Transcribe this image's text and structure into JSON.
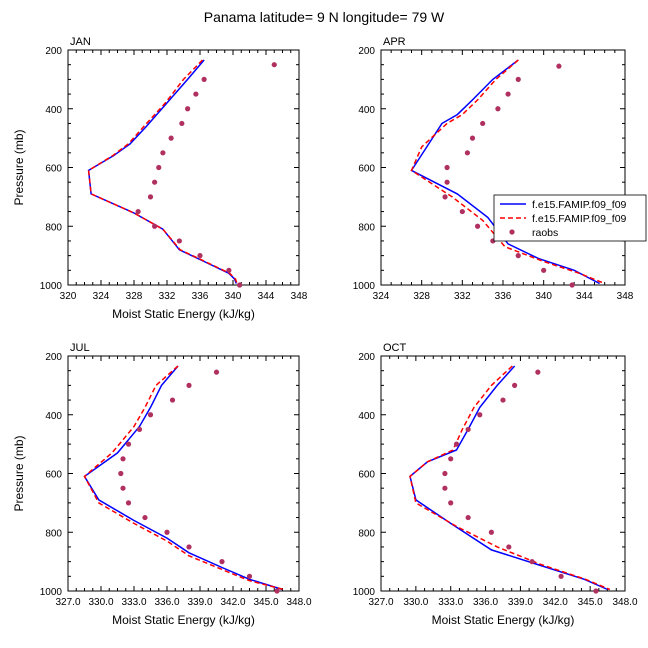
{
  "figure": {
    "title": "Panama  latitude= 9 N longitude= 79 W"
  },
  "chart_data": [
    {
      "type": "line",
      "panel_title": "JAN",
      "xlabel": "Moist Static Energy (kJ/kg)",
      "ylabel": "Pressure (mb)",
      "xlim": [
        320,
        348
      ],
      "ylim": [
        200,
        1000
      ],
      "y_reversed": true,
      "xticks": [
        320,
        324,
        328,
        332,
        336,
        340,
        344,
        348
      ],
      "xtick_labels": [
        "320",
        "324",
        "328",
        "332",
        "336",
        "340",
        "344",
        "348"
      ],
      "yticks": [
        200,
        400,
        600,
        800,
        1000
      ],
      "ytick_labels": [
        "200",
        "400",
        "600",
        "800",
        "1000"
      ],
      "series": [
        {
          "name": "f.e15.FAMIP.f09_f09",
          "style": "solid",
          "color": "#0000ff",
          "points": [
            [
              336.5,
              234
            ],
            [
              334.5,
              300
            ],
            [
              332.0,
              380
            ],
            [
              329.5,
              460
            ],
            [
              327.5,
              520
            ],
            [
              325.5,
              560
            ],
            [
              322.5,
              610
            ],
            [
              322.8,
              690
            ],
            [
              328.0,
              755
            ],
            [
              331.5,
              810
            ],
            [
              333.5,
              880
            ],
            [
              336.5,
              920
            ],
            [
              339.5,
              960
            ],
            [
              340.2,
              980
            ],
            [
              340.4,
              995
            ]
          ]
        },
        {
          "name": "f.e15.FAMIP.f09_f09",
          "style": "dashed",
          "color": "#ff0000",
          "points": [
            [
              336.3,
              234
            ],
            [
              334.0,
              300
            ],
            [
              331.8,
              380
            ],
            [
              329.2,
              460
            ],
            [
              327.3,
              520
            ],
            [
              325.4,
              560
            ],
            [
              322.5,
              610
            ],
            [
              322.8,
              690
            ],
            [
              328.0,
              755
            ],
            [
              331.5,
              810
            ],
            [
              333.6,
              880
            ],
            [
              336.6,
              920
            ],
            [
              339.6,
              960
            ],
            [
              340.3,
              980
            ],
            [
              340.5,
              995
            ]
          ]
        },
        {
          "name": "raobs",
          "style": "markers",
          "color": "#b03060",
          "points": [
            [
              345.0,
              250
            ],
            [
              336.5,
              300
            ],
            [
              335.5,
              350
            ],
            [
              334.5,
              400
            ],
            [
              333.8,
              450
            ],
            [
              332.5,
              500
            ],
            [
              331.5,
              550
            ],
            [
              331.0,
              600
            ],
            [
              330.5,
              650
            ],
            [
              330.0,
              700
            ],
            [
              328.5,
              750
            ],
            [
              330.5,
              800
            ],
            [
              333.5,
              850
            ],
            [
              336.0,
              900
            ],
            [
              339.5,
              950
            ],
            [
              340.8,
              1000
            ]
          ]
        }
      ]
    },
    {
      "type": "line",
      "panel_title": "APR",
      "xlabel": "",
      "ylabel": "",
      "xlim": [
        324,
        348
      ],
      "ylim": [
        200,
        1000
      ],
      "y_reversed": true,
      "xticks": [
        324,
        328,
        332,
        336,
        340,
        344,
        348
      ],
      "xtick_labels": [
        "324",
        "328",
        "332",
        "336",
        "340",
        "344",
        "348"
      ],
      "yticks": [
        200,
        400,
        600,
        800,
        1000
      ],
      "ytick_labels": [
        "200",
        "400",
        "600",
        "800",
        "1000"
      ],
      "series": [
        {
          "name": "f.e15.FAMIP.f09_f09",
          "style": "solid",
          "color": "#0000ff",
          "points": [
            [
              337.5,
              234
            ],
            [
              335.0,
              300
            ],
            [
              333.0,
              370
            ],
            [
              331.5,
              420
            ],
            [
              330.0,
              450
            ],
            [
              328.5,
              530
            ],
            [
              327.0,
              610
            ],
            [
              331.5,
              690
            ],
            [
              334.5,
              770
            ],
            [
              336.5,
              860
            ],
            [
              339.5,
              910
            ],
            [
              343.0,
              950
            ],
            [
              345.5,
              995
            ]
          ]
        },
        {
          "name": "f.e15.FAMIP.f09_f09",
          "style": "dashed",
          "color": "#ff0000",
          "points": [
            [
              337.5,
              234
            ],
            [
              335.3,
              300
            ],
            [
              333.5,
              370
            ],
            [
              332.0,
              420
            ],
            [
              330.5,
              450
            ],
            [
              328.0,
              530
            ],
            [
              327.0,
              610
            ],
            [
              331.0,
              700
            ],
            [
              334.0,
              780
            ],
            [
              336.2,
              870
            ],
            [
              340.0,
              920
            ],
            [
              343.5,
              960
            ],
            [
              346.0,
              995
            ]
          ]
        },
        {
          "name": "raobs",
          "style": "markers",
          "color": "#b03060",
          "points": [
            [
              341.5,
              255
            ],
            [
              337.5,
              300
            ],
            [
              336.5,
              350
            ],
            [
              335.5,
              400
            ],
            [
              334.0,
              450
            ],
            [
              333.0,
              500
            ],
            [
              332.5,
              550
            ],
            [
              330.5,
              600
            ],
            [
              330.5,
              650
            ],
            [
              330.3,
              700
            ],
            [
              332.0,
              750
            ],
            [
              333.5,
              800
            ],
            [
              335.0,
              850
            ],
            [
              337.5,
              900
            ],
            [
              340.0,
              950
            ],
            [
              342.8,
              1000
            ]
          ]
        }
      ]
    },
    {
      "type": "line",
      "panel_title": "JUL",
      "xlabel": "Moist Static Energy (kJ/kg)",
      "ylabel": "Pressure (mb)",
      "xlim": [
        327,
        348
      ],
      "ylim": [
        200,
        1000
      ],
      "y_reversed": true,
      "xticks": [
        327,
        330,
        333,
        336,
        339,
        342,
        345,
        348
      ],
      "xtick_labels": [
        "327.0",
        "330.0",
        "333.0",
        "336.0",
        "339.0",
        "342.0",
        "345.0",
        "348.0"
      ],
      "yticks": [
        200,
        400,
        600,
        800,
        1000
      ],
      "ytick_labels": [
        "200",
        "400",
        "600",
        "800",
        "1000"
      ],
      "series": [
        {
          "name": "f.e15.FAMIP.f09_f09",
          "style": "solid",
          "color": "#0000ff",
          "points": [
            [
              337.0,
              234
            ],
            [
              335.5,
              300
            ],
            [
              334.5,
              375
            ],
            [
              333.5,
              440
            ],
            [
              331.5,
              530
            ],
            [
              328.5,
              610
            ],
            [
              329.8,
              690
            ],
            [
              333.0,
              760
            ],
            [
              336.0,
              820
            ],
            [
              338.0,
              870
            ],
            [
              341.0,
              920
            ],
            [
              343.5,
              960
            ],
            [
              346.5,
              995
            ]
          ]
        },
        {
          "name": "f.e15.FAMIP.f09_f09",
          "style": "dashed",
          "color": "#ff0000",
          "points": [
            [
              337.0,
              234
            ],
            [
              335.0,
              300
            ],
            [
              334.0,
              375
            ],
            [
              333.0,
              440
            ],
            [
              331.0,
              530
            ],
            [
              328.5,
              610
            ],
            [
              329.8,
              700
            ],
            [
              333.0,
              770
            ],
            [
              336.0,
              830
            ],
            [
              338.0,
              880
            ],
            [
              341.2,
              930
            ],
            [
              343.5,
              965
            ],
            [
              346.6,
              995
            ]
          ]
        },
        {
          "name": "raobs",
          "style": "markers",
          "color": "#b03060",
          "points": [
            [
              340.5,
              255
            ],
            [
              338.0,
              300
            ],
            [
              336.5,
              350
            ],
            [
              334.5,
              400
            ],
            [
              333.5,
              450
            ],
            [
              332.5,
              500
            ],
            [
              332.0,
              550
            ],
            [
              331.8,
              600
            ],
            [
              332.0,
              650
            ],
            [
              332.5,
              700
            ],
            [
              334.0,
              750
            ],
            [
              336.0,
              800
            ],
            [
              338.0,
              850
            ],
            [
              341.0,
              900
            ],
            [
              343.5,
              950
            ],
            [
              346.0,
              1000
            ]
          ]
        }
      ]
    },
    {
      "type": "line",
      "panel_title": "OCT",
      "xlabel": "Moist Static Energy (kJ/kg)",
      "ylabel": "",
      "xlim": [
        327,
        348
      ],
      "ylim": [
        200,
        1000
      ],
      "y_reversed": true,
      "xticks": [
        327,
        330,
        333,
        336,
        339,
        342,
        345,
        348
      ],
      "xtick_labels": [
        "327.0",
        "330.0",
        "333.0",
        "336.0",
        "339.0",
        "342.0",
        "345.0",
        "348.0"
      ],
      "yticks": [
        200,
        400,
        600,
        800,
        1000
      ],
      "ytick_labels": [
        "200",
        "400",
        "600",
        "800",
        "1000"
      ],
      "series": [
        {
          "name": "f.e15.FAMIP.f09_f09",
          "style": "solid",
          "color": "#0000ff",
          "points": [
            [
              338.5,
              234
            ],
            [
              337.0,
              300
            ],
            [
              335.5,
              375
            ],
            [
              334.5,
              450
            ],
            [
              333.5,
              520
            ],
            [
              331.0,
              560
            ],
            [
              329.5,
              610
            ],
            [
              330.0,
              690
            ],
            [
              333.0,
              770
            ],
            [
              336.5,
              860
            ],
            [
              340.5,
              910
            ],
            [
              344.5,
              960
            ],
            [
              346.5,
              995
            ]
          ]
        },
        {
          "name": "f.e15.FAMIP.f09_f09",
          "style": "dashed",
          "color": "#ff0000",
          "points": [
            [
              338.3,
              234
            ],
            [
              336.5,
              300
            ],
            [
              335.0,
              375
            ],
            [
              334.0,
              450
            ],
            [
              333.2,
              520
            ],
            [
              331.0,
              560
            ],
            [
              329.5,
              610
            ],
            [
              330.0,
              700
            ],
            [
              333.5,
              780
            ],
            [
              337.0,
              850
            ],
            [
              340.8,
              910
            ],
            [
              344.6,
              960
            ],
            [
              346.7,
              995
            ]
          ]
        },
        {
          "name": "raobs",
          "style": "markers",
          "color": "#b03060",
          "points": [
            [
              340.5,
              255
            ],
            [
              338.5,
              300
            ],
            [
              337.5,
              350
            ],
            [
              335.5,
              400
            ],
            [
              334.5,
              450
            ],
            [
              333.5,
              500
            ],
            [
              333.0,
              550
            ],
            [
              332.5,
              600
            ],
            [
              332.5,
              650
            ],
            [
              333.0,
              700
            ],
            [
              334.5,
              750
            ],
            [
              336.5,
              800
            ],
            [
              338.0,
              850
            ],
            [
              340.0,
              900
            ],
            [
              342.5,
              950
            ],
            [
              345.5,
              1000
            ]
          ]
        }
      ]
    }
  ],
  "legend": {
    "placement": "right side of APR panel",
    "entries": [
      {
        "label": "f.e15.FAMIP.f09_f09",
        "style": "solid",
        "color": "#0000ff"
      },
      {
        "label": "f.e15.FAMIP.f09_f09",
        "style": "dashed",
        "color": "#ff0000"
      },
      {
        "label": "raobs",
        "style": "markers",
        "color": "#b03060"
      }
    ]
  }
}
